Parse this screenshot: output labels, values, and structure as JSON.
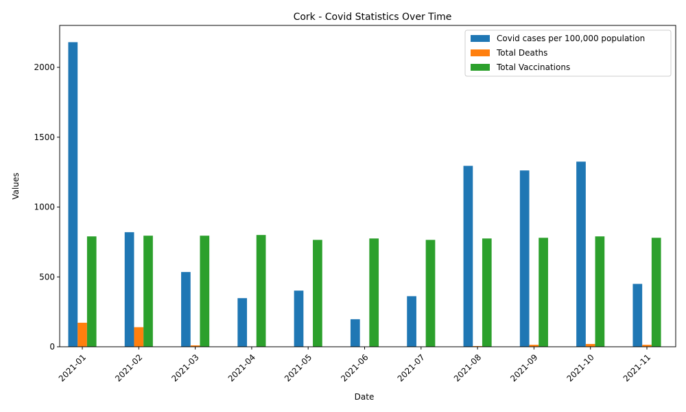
{
  "chart_data": {
    "type": "bar",
    "title": "Cork - Covid Statistics Over Time",
    "xlabel": "Date",
    "ylabel": "Values",
    "ylim": [
      0,
      2300
    ],
    "yticks": [
      0,
      500,
      1000,
      1500,
      2000
    ],
    "grid": false,
    "legend_position": "top-right",
    "categories": [
      "2021-01",
      "2021-02",
      "2021-03",
      "2021-04",
      "2021-05",
      "2021-06",
      "2021-07",
      "2021-08",
      "2021-09",
      "2021-10",
      "2021-11"
    ],
    "series": [
      {
        "name": "Covid cases per 100,000 population",
        "color": "#1f77b4",
        "values": [
          2180,
          820,
          535,
          348,
          402,
          197,
          362,
          1295,
          1262,
          1325,
          450
        ]
      },
      {
        "name": "Total Deaths",
        "color": "#ff7f0e",
        "values": [
          172,
          140,
          10,
          2,
          2,
          1,
          2,
          5,
          14,
          20,
          14
        ]
      },
      {
        "name": "Total Vaccinations",
        "color": "#2ca02c",
        "values": [
          790,
          795,
          795,
          800,
          765,
          775,
          765,
          775,
          780,
          790,
          780
        ]
      }
    ]
  }
}
